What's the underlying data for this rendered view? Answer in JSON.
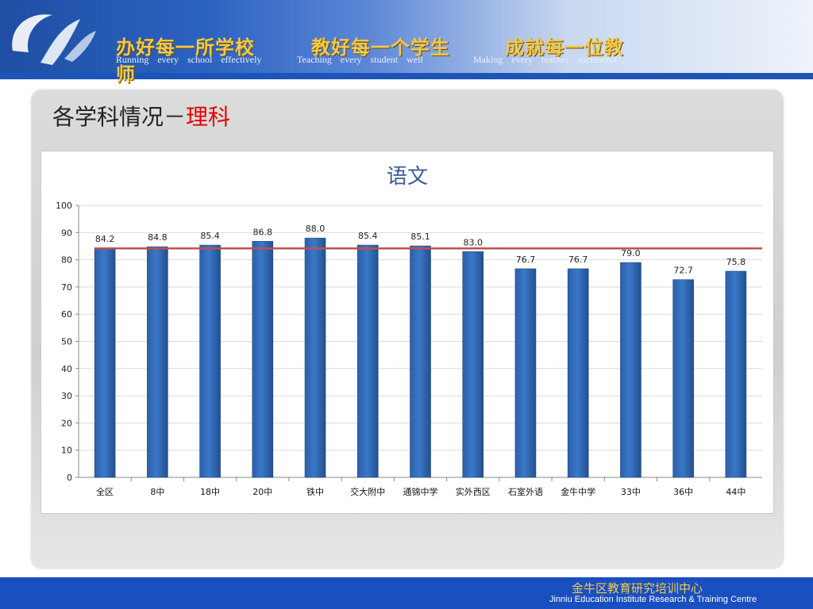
{
  "header": {
    "slogans": [
      {
        "cn": "办好每一所学校",
        "en": "Running every school effectively"
      },
      {
        "cn": "教好每一个学生",
        "en": "Teaching every student well"
      },
      {
        "cn": "成就每一位教",
        "en": "Making every teacher successful"
      }
    ],
    "slogan_wrap": "师"
  },
  "page": {
    "title_prefix": "各学科情况－",
    "title_accent": "理科"
  },
  "chart_data": {
    "type": "bar",
    "title": "语文",
    "categories": [
      "全区",
      "8中",
      "18中",
      "20中",
      "铁中",
      "交大附中",
      "通锦中学",
      "实外西区",
      "石室外语",
      "金牛中学",
      "33中",
      "36中",
      "44中"
    ],
    "values": [
      84.2,
      84.8,
      85.4,
      86.8,
      88.0,
      85.4,
      85.1,
      83.0,
      76.7,
      76.7,
      79.0,
      72.7,
      75.8
    ],
    "value_labels": [
      "84.2",
      "84.8",
      "85.4",
      "86.8",
      "88.0",
      "85.4",
      "85.1",
      "83.0",
      "76.7",
      "76.7",
      "79.0",
      "72.7",
      "75.8"
    ],
    "ylim": [
      0,
      100
    ],
    "yticks": [
      0,
      10,
      20,
      30,
      40,
      50,
      60,
      70,
      80,
      90,
      100
    ],
    "reference_line": 84.2,
    "bar_color": "#3a78c9",
    "line_color": "#c0504d",
    "grid": true
  },
  "footer": {
    "cn": "金牛区教育研究培训中心",
    "en": "Jinniu Education Institute Research & Training Centre"
  }
}
